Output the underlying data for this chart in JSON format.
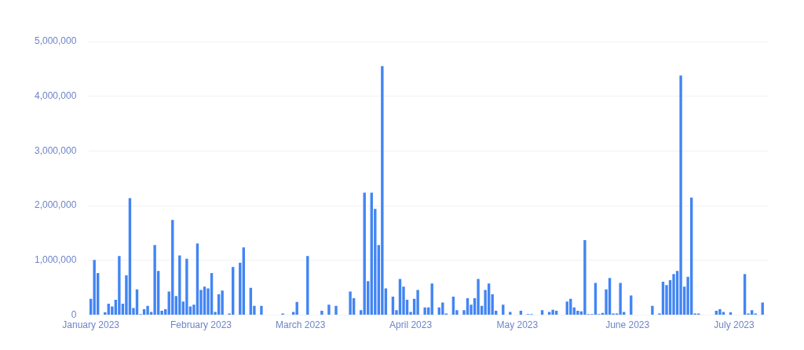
{
  "chart_data": {
    "type": "bar",
    "color": "#4285f4",
    "grid": "y",
    "x": [
      "2023-01-01",
      "2023-01-02",
      "2023-01-03",
      "2023-01-04",
      "2023-01-05",
      "2023-01-06",
      "2023-01-07",
      "2023-01-08",
      "2023-01-09",
      "2023-01-10",
      "2023-01-11",
      "2023-01-12",
      "2023-01-13",
      "2023-01-14",
      "2023-01-15",
      "2023-01-16",
      "2023-01-17",
      "2023-01-18",
      "2023-01-19",
      "2023-01-20",
      "2023-01-21",
      "2023-01-22",
      "2023-01-23",
      "2023-01-24",
      "2023-01-25",
      "2023-01-26",
      "2023-01-27",
      "2023-01-28",
      "2023-01-29",
      "2023-01-30",
      "2023-01-31",
      "2023-02-01",
      "2023-02-02",
      "2023-02-03",
      "2023-02-04",
      "2023-02-05",
      "2023-02-06",
      "2023-02-07",
      "2023-02-08",
      "2023-02-09",
      "2023-02-10",
      "2023-02-11",
      "2023-02-12",
      "2023-02-13",
      "2023-02-14",
      "2023-02-15",
      "2023-02-16",
      "2023-02-17",
      "2023-02-18",
      "2023-02-19",
      "2023-02-20",
      "2023-02-21",
      "2023-02-22",
      "2023-02-23",
      "2023-02-24",
      "2023-02-25",
      "2023-02-26",
      "2023-02-27",
      "2023-02-28",
      "2023-03-01",
      "2023-03-02",
      "2023-03-03",
      "2023-03-04",
      "2023-03-05",
      "2023-03-06",
      "2023-03-07",
      "2023-03-08",
      "2023-03-09",
      "2023-03-10",
      "2023-03-11",
      "2023-03-12",
      "2023-03-13",
      "2023-03-14",
      "2023-03-15",
      "2023-03-16",
      "2023-03-17",
      "2023-03-18",
      "2023-03-19",
      "2023-03-20",
      "2023-03-21",
      "2023-03-22",
      "2023-03-23",
      "2023-03-24",
      "2023-03-25",
      "2023-03-26",
      "2023-03-27",
      "2023-03-28",
      "2023-03-29",
      "2023-03-30",
      "2023-03-31",
      "2023-04-01",
      "2023-04-02",
      "2023-04-03",
      "2023-04-04",
      "2023-04-05",
      "2023-04-06",
      "2023-04-07",
      "2023-04-08",
      "2023-04-09",
      "2023-04-10",
      "2023-04-11",
      "2023-04-12",
      "2023-04-13",
      "2023-04-14",
      "2023-04-15",
      "2023-04-16",
      "2023-04-17",
      "2023-04-18",
      "2023-04-19",
      "2023-04-20",
      "2023-04-21",
      "2023-04-22",
      "2023-04-23",
      "2023-04-24",
      "2023-04-25",
      "2023-04-26",
      "2023-04-27",
      "2023-04-28",
      "2023-04-29",
      "2023-04-30",
      "2023-05-01",
      "2023-05-02",
      "2023-05-03",
      "2023-05-04",
      "2023-05-05",
      "2023-05-06",
      "2023-05-07",
      "2023-05-08",
      "2023-05-09",
      "2023-05-10",
      "2023-05-11",
      "2023-05-12",
      "2023-05-13",
      "2023-05-14",
      "2023-05-15",
      "2023-05-16",
      "2023-05-17",
      "2023-05-18",
      "2023-05-19",
      "2023-05-20",
      "2023-05-21",
      "2023-05-22",
      "2023-05-23",
      "2023-05-24",
      "2023-05-25",
      "2023-05-26",
      "2023-05-27",
      "2023-05-28",
      "2023-05-29",
      "2023-05-30",
      "2023-05-31",
      "2023-06-01",
      "2023-06-02",
      "2023-06-03",
      "2023-06-04",
      "2023-06-05",
      "2023-06-06",
      "2023-06-07",
      "2023-06-08",
      "2023-06-09",
      "2023-06-10",
      "2023-06-11",
      "2023-06-12",
      "2023-06-13",
      "2023-06-14",
      "2023-06-15",
      "2023-06-16",
      "2023-06-17",
      "2023-06-18",
      "2023-06-19",
      "2023-06-20",
      "2023-06-21",
      "2023-06-22",
      "2023-06-23",
      "2023-06-24",
      "2023-06-25",
      "2023-06-26",
      "2023-06-27",
      "2023-06-28",
      "2023-06-29",
      "2023-06-30",
      "2023-07-01",
      "2023-07-02",
      "2023-07-03",
      "2023-07-04",
      "2023-07-05",
      "2023-07-06",
      "2023-07-07",
      "2023-07-08",
      "2023-07-09",
      "2023-07-10"
    ],
    "values": [
      300000,
      1010000,
      770000,
      10000,
      50000,
      210000,
      160000,
      280000,
      1080000,
      210000,
      730000,
      2140000,
      130000,
      470000,
      20000,
      110000,
      170000,
      60000,
      1280000,
      810000,
      80000,
      110000,
      430000,
      1740000,
      350000,
      1090000,
      250000,
      1030000,
      160000,
      190000,
      1310000,
      460000,
      520000,
      490000,
      770000,
      60000,
      380000,
      450000,
      10000,
      30000,
      880000,
      10000,
      960000,
      1240000,
      10000,
      500000,
      170000,
      10000,
      170000,
      10000,
      10000,
      10000,
      10000,
      10000,
      30000,
      10000,
      10000,
      60000,
      240000,
      10000,
      0,
      1080000,
      10000,
      0,
      10000,
      80000,
      10000,
      190000,
      10000,
      170000,
      10000,
      0,
      10000,
      430000,
      310000,
      10000,
      90000,
      2240000,
      620000,
      2240000,
      1940000,
      1280000,
      4550000,
      490000,
      10000,
      340000,
      90000,
      660000,
      520000,
      280000,
      60000,
      300000,
      460000,
      10000,
      140000,
      140000,
      580000,
      10000,
      140000,
      230000,
      30000,
      10000,
      340000,
      90000,
      10000,
      90000,
      310000,
      190000,
      310000,
      660000,
      170000,
      460000,
      580000,
      380000,
      80000,
      10000,
      190000,
      10000,
      60000,
      10000,
      10000,
      80000,
      10000,
      20000,
      20000,
      10000,
      10000,
      90000,
      10000,
      60000,
      100000,
      80000,
      null,
      null,
      250000,
      300000,
      140000,
      80000,
      70000,
      1370000,
      20000,
      20000,
      590000,
      20000,
      40000,
      470000,
      680000,
      30000,
      30000,
      590000,
      60000,
      10000,
      360000,
      10000,
      10000,
      10000,
      10000,
      10000,
      170000,
      10000,
      30000,
      610000,
      550000,
      640000,
      750000,
      810000,
      4380000,
      520000,
      700000,
      2150000,
      30000,
      30000,
      null,
      null,
      10000,
      10000,
      80000,
      110000,
      60000,
      10000,
      50000,
      10000,
      10000,
      10000,
      750000,
      30000,
      90000,
      30000,
      10000,
      230000,
      10000
    ],
    "xlim": [
      "2022-12-31T12:00",
      "2023-07-10T12:00"
    ],
    "xticks": [
      {
        "value": "2023-01-01",
        "label": "January 2023"
      },
      {
        "value": "2023-02-01",
        "label": "February 2023"
      },
      {
        "value": "2023-03-01",
        "label": "March 2023"
      },
      {
        "value": "2023-04-01",
        "label": "April 2023"
      },
      {
        "value": "2023-05-01",
        "label": "May 2023"
      },
      {
        "value": "2023-06-01",
        "label": "June 2023"
      },
      {
        "value": "2023-07-01",
        "label": "July 2023"
      }
    ],
    "ylim": [
      0,
      5000000
    ],
    "yticks": [
      0,
      {
        "value": 1000000,
        "label": "1,000,000"
      },
      {
        "value": 2000000,
        "label": "2,000,000"
      },
      {
        "value": 3000000,
        "label": "3,000,000"
      },
      {
        "value": 4000000,
        "label": "4,000,000"
      },
      {
        "value": 5000000,
        "label": "5,000,000"
      }
    ]
  }
}
